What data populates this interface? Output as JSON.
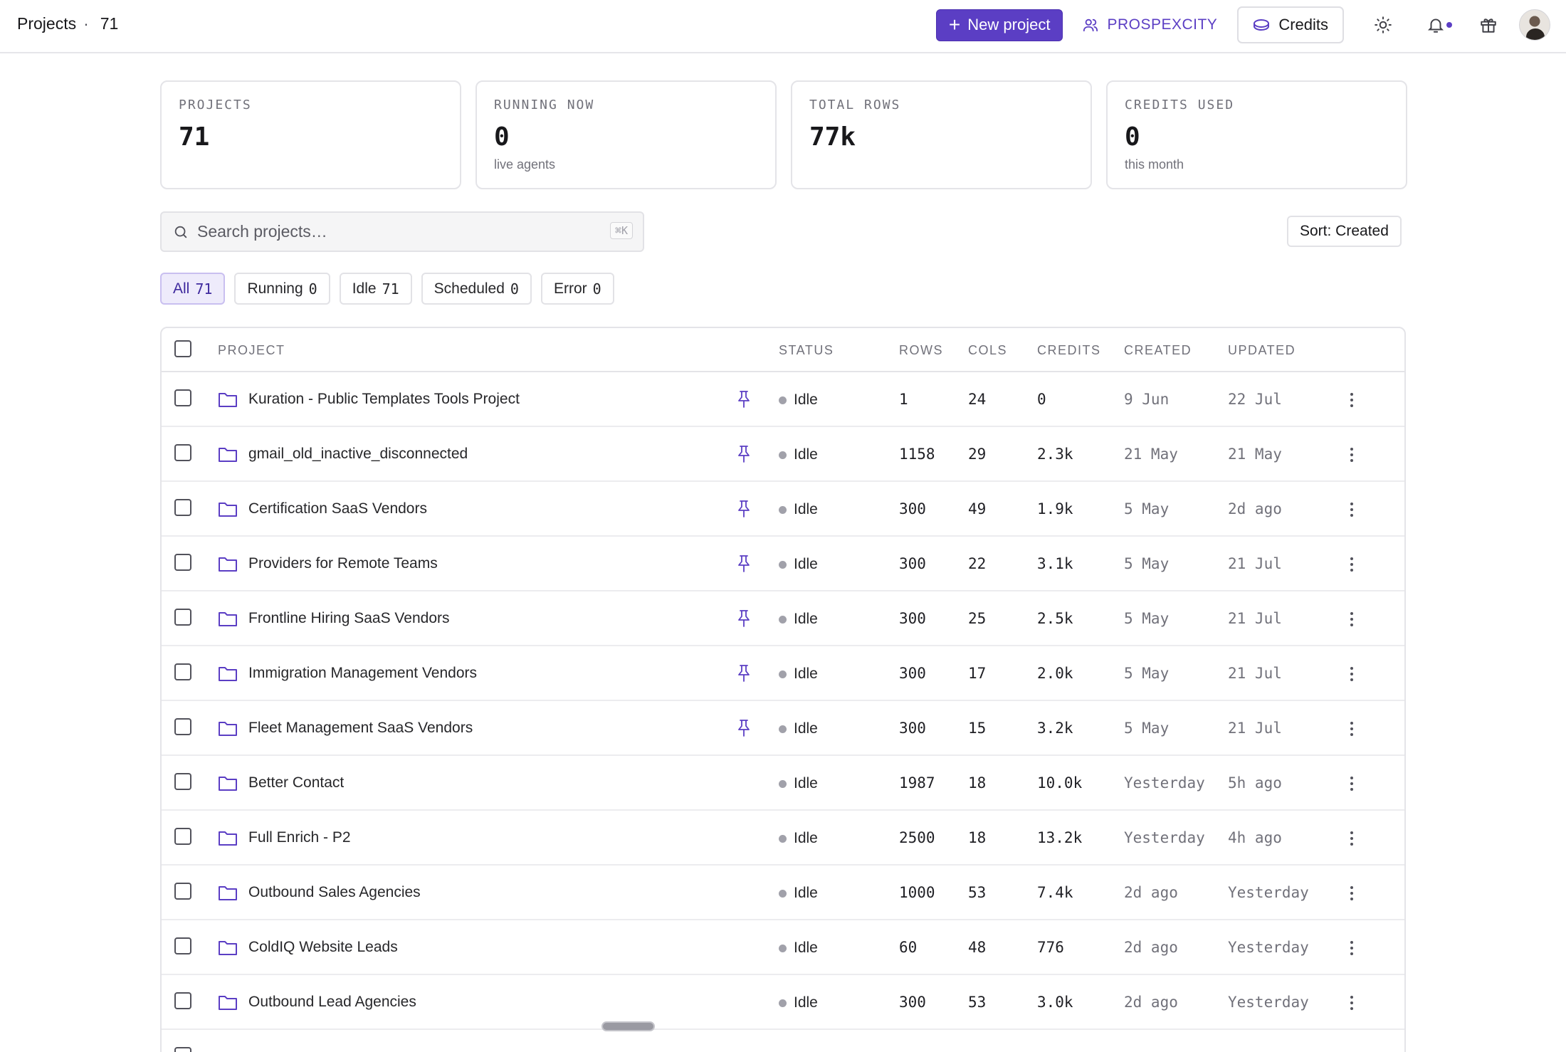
{
  "header": {
    "title": "Projects",
    "separator": "·",
    "count": "71",
    "new_project_label": "New project",
    "org_name": "PROSPEXCITY",
    "credits_label": "Credits"
  },
  "stats": [
    {
      "label": "PROJECTS",
      "value": "71",
      "sub": ""
    },
    {
      "label": "RUNNING NOW",
      "value": "0",
      "sub": "live agents"
    },
    {
      "label": "TOTAL ROWS",
      "value": "77k",
      "sub": ""
    },
    {
      "label": "CREDITS USED",
      "value": "0",
      "sub": "this month"
    }
  ],
  "search": {
    "placeholder": "Search projects…",
    "shortcut": "⌘K"
  },
  "sort_label": "Sort: Created",
  "filters": [
    {
      "label": "All",
      "count": "71",
      "active": true
    },
    {
      "label": "Running",
      "count": "0",
      "active": false
    },
    {
      "label": "Idle",
      "count": "71",
      "active": false
    },
    {
      "label": "Scheduled",
      "count": "0",
      "active": false
    },
    {
      "label": "Error",
      "count": "0",
      "active": false
    }
  ],
  "table": {
    "columns": {
      "project": "PROJECT",
      "status": "STATUS",
      "rows": "ROWS",
      "cols": "COLS",
      "credits": "CREDITS",
      "created": "CREATED",
      "updated": "UPDATED"
    },
    "rows": [
      {
        "name": "Kuration - Public Templates Tools Project",
        "pinned": true,
        "status": "Idle",
        "rows": "1",
        "cols": "24",
        "credits": "0",
        "created": "9 Jun",
        "updated": "22 Jul"
      },
      {
        "name": "gmail_old_inactive_disconnected",
        "pinned": true,
        "status": "Idle",
        "rows": "1158",
        "cols": "29",
        "credits": "2.3k",
        "created": "21 May",
        "updated": "21 May"
      },
      {
        "name": "Certification SaaS Vendors",
        "pinned": true,
        "status": "Idle",
        "rows": "300",
        "cols": "49",
        "credits": "1.9k",
        "created": "5 May",
        "updated": "2d ago"
      },
      {
        "name": "Providers for Remote Teams",
        "pinned": true,
        "status": "Idle",
        "rows": "300",
        "cols": "22",
        "credits": "3.1k",
        "created": "5 May",
        "updated": "21 Jul"
      },
      {
        "name": "Frontline Hiring SaaS Vendors",
        "pinned": true,
        "status": "Idle",
        "rows": "300",
        "cols": "25",
        "credits": "2.5k",
        "created": "5 May",
        "updated": "21 Jul"
      },
      {
        "name": "Immigration Management Vendors",
        "pinned": true,
        "status": "Idle",
        "rows": "300",
        "cols": "17",
        "credits": "2.0k",
        "created": "5 May",
        "updated": "21 Jul"
      },
      {
        "name": "Fleet Management SaaS Vendors",
        "pinned": true,
        "status": "Idle",
        "rows": "300",
        "cols": "15",
        "credits": "3.2k",
        "created": "5 May",
        "updated": "21 Jul"
      },
      {
        "name": "Better Contact",
        "pinned": false,
        "status": "Idle",
        "rows": "1987",
        "cols": "18",
        "credits": "10.0k",
        "created": "Yesterday",
        "updated": "5h ago"
      },
      {
        "name": "Full Enrich - P2",
        "pinned": false,
        "status": "Idle",
        "rows": "2500",
        "cols": "18",
        "credits": "13.2k",
        "created": "Yesterday",
        "updated": "4h ago"
      },
      {
        "name": "Outbound Sales Agencies",
        "pinned": false,
        "status": "Idle",
        "rows": "1000",
        "cols": "53",
        "credits": "7.4k",
        "created": "2d ago",
        "updated": "Yesterday"
      },
      {
        "name": "ColdIQ Website Leads",
        "pinned": false,
        "status": "Idle",
        "rows": "60",
        "cols": "48",
        "credits": "776",
        "created": "2d ago",
        "updated": "Yesterday"
      },
      {
        "name": "Outbound Lead Agencies",
        "pinned": false,
        "status": "Idle",
        "rows": "300",
        "cols": "53",
        "credits": "3.0k",
        "created": "2d ago",
        "updated": "Yesterday"
      }
    ]
  },
  "colors": {
    "accent": "#5b3ec4",
    "status_idle": "#a1a1aa",
    "border": "#e4e4e8"
  },
  "icons": {
    "new_project": "plus-icon",
    "org": "users-icon",
    "credits": "coin-icon",
    "theme": "sun-icon",
    "notifications": "bell-icon",
    "gift": "gift-icon",
    "search": "search-icon",
    "project": "folder-icon",
    "pin": "pin-icon",
    "row_menu": "more-vertical-icon"
  }
}
